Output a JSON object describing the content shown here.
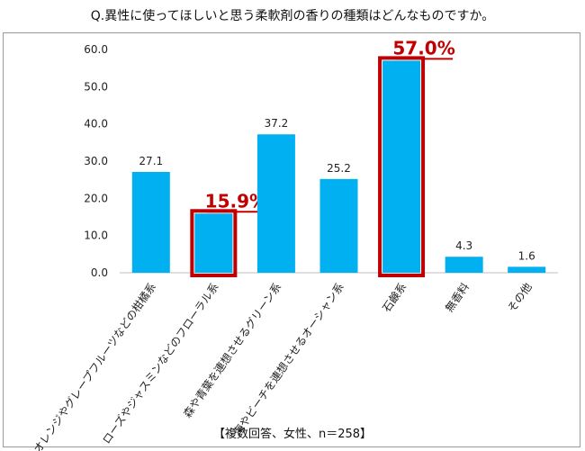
{
  "title": "Q.異性に使ってほしいと思う柔軟剤の香りの種類はどんなものですか。",
  "footnote": "【複数回答、女性、n＝258】",
  "colors": {
    "bar": "#00b0f0",
    "highlight": "#c00000"
  },
  "chart_data": {
    "type": "bar",
    "categories": [
      "オレンジやグレープフルーツなどの柑橘系",
      "ローズやジャスミンなどのフローラル系",
      "森や青葉を連想させるグリーン系",
      "海やビーチを連想させるオーシャン系",
      "石鹸系",
      "無香料",
      "その他"
    ],
    "values": [
      27.1,
      15.9,
      37.2,
      25.2,
      57.0,
      4.3,
      1.6
    ],
    "data_labels": [
      "27.1",
      "15.9%",
      "37.2",
      "25.2",
      "57.0%",
      "4.3",
      "1.6"
    ],
    "highlighted": [
      false,
      true,
      false,
      false,
      true,
      false,
      false
    ],
    "ylim": [
      0,
      60
    ],
    "yticks": [
      "0.0",
      "10.0",
      "20.0",
      "30.0",
      "40.0",
      "50.0",
      "60.0"
    ],
    "grid": false,
    "xlabel": "",
    "ylabel": ""
  }
}
